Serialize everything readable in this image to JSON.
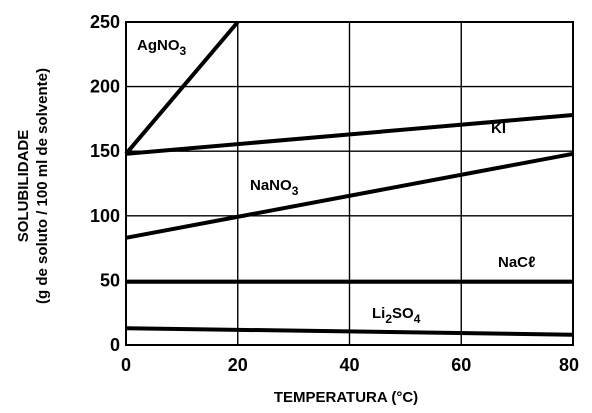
{
  "chart_data": {
    "type": "line",
    "xlabel": "TEMPERATURA (°C)",
    "ylabel_line1": "SOLUBILIDADE",
    "ylabel_line2": "(g de soluto / 100 ml de solvente)",
    "xlim": [
      0,
      80
    ],
    "ylim": [
      0,
      250
    ],
    "x_ticks": [
      0,
      20,
      40,
      60,
      80
    ],
    "y_ticks": [
      0,
      50,
      100,
      150,
      200,
      250
    ],
    "grid": true,
    "series": [
      {
        "name": "AgNO3",
        "label_main": "AgNO",
        "label_sub": "3",
        "label_tail": "",
        "x": [
          0,
          20
        ],
        "y": [
          148,
          250
        ]
      },
      {
        "name": "KI",
        "label_main": "KI",
        "label_sub": "",
        "label_tail": "",
        "x": [
          0,
          80
        ],
        "y": [
          148,
          178
        ]
      },
      {
        "name": "NaNO3",
        "label_main": "NaNO",
        "label_sub": "3",
        "label_tail": "",
        "x": [
          0,
          80
        ],
        "y": [
          83,
          148
        ]
      },
      {
        "name": "NaCℓ",
        "label_main": "NaCℓ",
        "label_sub": "",
        "label_tail": "",
        "x": [
          0,
          80
        ],
        "y": [
          49,
          49
        ]
      },
      {
        "name": "Li2SO4",
        "label_main": "Li",
        "label_sub": "2",
        "label_tail": "SO",
        "label_sub2": "4",
        "x": [
          0,
          80
        ],
        "y": [
          13,
          8
        ]
      }
    ]
  }
}
